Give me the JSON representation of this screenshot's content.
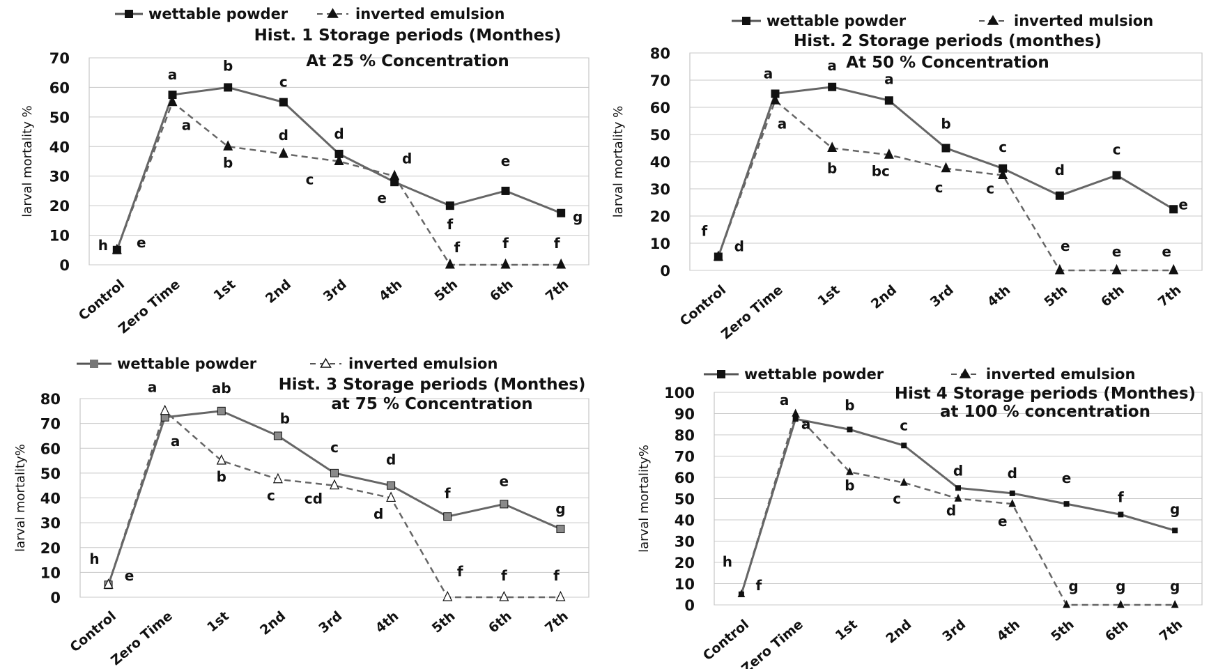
{
  "chart_data": [
    {
      "type": "line",
      "legend_position": "top",
      "grid": true,
      "title": "Hist. 1 Storage periods (Monthes)",
      "subtitle": "At 25 % Concentration",
      "xlabel": "",
      "ylabel": "larval mortality %",
      "ylim": [
        0,
        70
      ],
      "yticks": [
        0,
        10,
        20,
        30,
        40,
        50,
        60,
        70
      ],
      "categories": [
        "Control",
        "Zero Time",
        "1st",
        "2nd",
        "3rd",
        "4th",
        "5th",
        "6th",
        "7th"
      ],
      "series": [
        {
          "name": "wettable powder",
          "values": [
            5,
            57.5,
            60,
            55,
            37.5,
            28,
            20,
            25,
            17.5
          ],
          "labels": [
            "h",
            "a",
            "b",
            "c",
            "d",
            "e",
            "f",
            "e",
            "g"
          ]
        },
        {
          "name": "inverted emulsion",
          "values": [
            5,
            55,
            40,
            37.5,
            35,
            30,
            0,
            0,
            0
          ],
          "labels": [
            "e",
            "a",
            "b",
            "d",
            "c",
            "d",
            "f",
            "f",
            "f"
          ]
        }
      ]
    },
    {
      "type": "line",
      "legend_position": "top",
      "grid": true,
      "title": "Hist. 2 Storage periods (monthes)",
      "subtitle": "At 50 % Concentration",
      "xlabel": "",
      "ylabel": "larval mortality %",
      "ylim": [
        0,
        80
      ],
      "yticks": [
        0,
        10,
        20,
        30,
        40,
        50,
        60,
        70,
        80
      ],
      "categories": [
        "Control",
        "Zero Time",
        "1st",
        "2nd",
        "3rd",
        "4th",
        "5th",
        "6th",
        "7th"
      ],
      "series": [
        {
          "name": "wettable powder",
          "values": [
            5,
            65,
            67.5,
            62.5,
            45,
            37.5,
            27.5,
            35,
            22.5
          ],
          "labels": [
            "f",
            "a",
            "a",
            "a",
            "b",
            "c",
            "d",
            "c",
            "e"
          ]
        },
        {
          "name": "inverted mulsion",
          "values": [
            5,
            62.5,
            45,
            42.5,
            37.5,
            35,
            0,
            0,
            0
          ],
          "labels": [
            "d",
            "a",
            "b",
            "bc",
            "c",
            "c",
            "e",
            "e",
            "e"
          ]
        }
      ]
    },
    {
      "type": "line",
      "legend_position": "top",
      "grid": true,
      "title": "Hist. 3 Storage periods (Monthes)",
      "subtitle": "at 75 % Concentration",
      "xlabel": "",
      "ylabel": "larval mortality%",
      "ylim": [
        0,
        80
      ],
      "yticks": [
        0,
        10,
        20,
        30,
        40,
        50,
        60,
        70,
        80
      ],
      "categories": [
        "Control",
        "Zero Time",
        "1st",
        "2nd",
        "3rd",
        "4th",
        "5th",
        "6th",
        "7th"
      ],
      "series": [
        {
          "name": "wettable powder",
          "values": [
            5,
            72.5,
            75,
            65,
            50,
            45,
            32.5,
            37.5,
            27.5
          ],
          "labels": [
            "h",
            "a",
            "ab",
            "b",
            "c",
            "d",
            "f",
            "e",
            "g"
          ]
        },
        {
          "name": "inverted emulsion",
          "values": [
            5,
            75,
            55,
            47.5,
            45,
            40,
            0,
            0,
            0
          ],
          "labels": [
            "e",
            "a",
            "b",
            "c",
            "cd",
            "d",
            "f",
            "f",
            "f"
          ]
        }
      ]
    },
    {
      "type": "line",
      "legend_position": "top",
      "grid": true,
      "title": "Hist 4 Storage periods (Monthes)",
      "subtitle": "at 100 % concentration",
      "xlabel": "",
      "ylabel": "larval mortality%",
      "ylim": [
        0,
        100
      ],
      "yticks": [
        0,
        10,
        20,
        30,
        40,
        50,
        60,
        70,
        80,
        90,
        100
      ],
      "categories": [
        "Control",
        "Zero Time",
        "1st",
        "2nd",
        "3rd",
        "4th",
        "5th",
        "6th",
        "7th"
      ],
      "series": [
        {
          "name": "wettable powder",
          "values": [
            5,
            87.5,
            82.5,
            75,
            55,
            52.5,
            47.5,
            42.5,
            35
          ],
          "labels": [
            "h",
            "a",
            "b",
            "c",
            "d",
            "d",
            "e",
            "f",
            "g"
          ]
        },
        {
          "name": "inverted emulsion",
          "values": [
            5,
            90,
            62.5,
            57.5,
            50,
            47.5,
            0,
            0,
            0
          ],
          "labels": [
            "f",
            "a",
            "b",
            "c",
            "d",
            "e",
            "g",
            "g",
            "g"
          ]
        }
      ]
    }
  ]
}
